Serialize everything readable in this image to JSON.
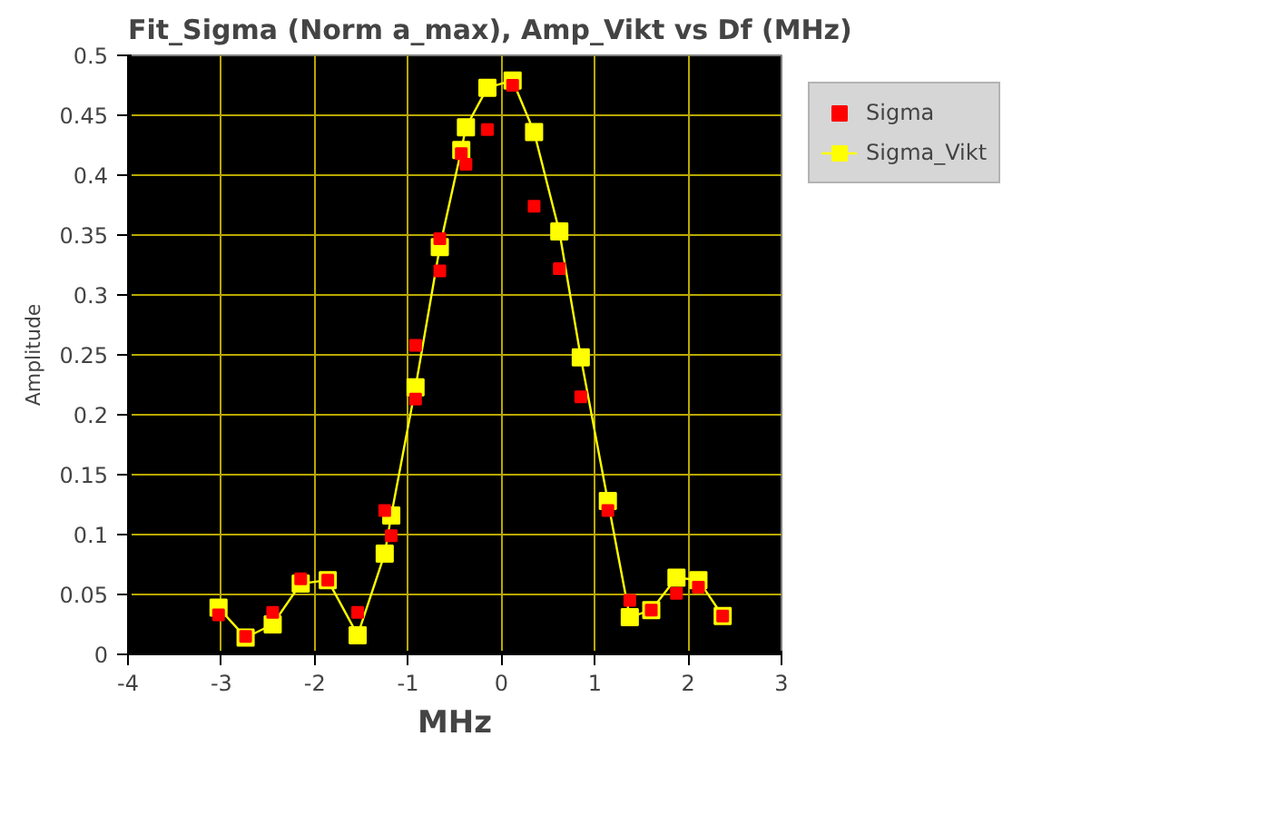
{
  "chart_data": {
    "type": "line",
    "title": "Fit_Sigma (Norm a_max), Amp_Vikt vs Df (MHz)",
    "xlabel": "MHz",
    "ylabel": "Amplitude",
    "xlim": [
      -4,
      3
    ],
    "xticks": [
      -4,
      -3,
      -2,
      -1,
      0,
      1,
      2,
      3
    ],
    "ylim": [
      0,
      0.5
    ],
    "yticks": [
      0,
      0.05,
      0.1,
      0.15,
      0.2,
      0.25,
      0.3,
      0.35,
      0.4,
      0.45,
      0.5
    ],
    "grid": true,
    "legend": "top right",
    "series": [
      {
        "name": "Sigma",
        "type": "scatter",
        "marker": "square",
        "color": "#ff0000",
        "x": [
          -3.03,
          -2.74,
          -2.45,
          -2.15,
          -1.86,
          -1.54,
          -1.25,
          -1.18,
          -0.92,
          -0.92,
          -0.66,
          -0.66,
          -0.43,
          -0.38,
          -0.15,
          0.12,
          0.35,
          0.62,
          0.85,
          1.14,
          1.375,
          1.605,
          1.875,
          2.11,
          2.37
        ],
        "values": [
          0.033,
          0.015,
          0.035,
          0.063,
          0.062,
          0.035,
          0.12,
          0.099,
          0.258,
          0.213,
          0.347,
          0.32,
          0.418,
          0.409,
          0.438,
          0.475,
          0.374,
          0.322,
          0.215,
          0.12,
          0.045,
          0.037,
          0.051,
          0.056,
          0.032
        ]
      },
      {
        "name": "Sigma_Vikt",
        "marker": "square",
        "color": "#ffff00",
        "x": [
          -3.03,
          -2.74,
          -2.45,
          -2.15,
          -1.86,
          -1.54,
          -1.25,
          -1.18,
          -0.92,
          -0.66,
          -0.43,
          -0.38,
          -0.15,
          0.12,
          0.35,
          0.62,
          0.85,
          1.14,
          1.375,
          1.605,
          1.875,
          2.11,
          2.37
        ],
        "values": [
          0.039,
          0.014,
          0.025,
          0.059,
          0.062,
          0.016,
          0.084,
          0.116,
          0.223,
          0.34,
          0.421,
          0.44,
          0.473,
          0.479,
          0.436,
          0.353,
          0.248,
          0.128,
          0.031,
          0.037,
          0.064,
          0.062,
          0.032
        ]
      }
    ]
  }
}
